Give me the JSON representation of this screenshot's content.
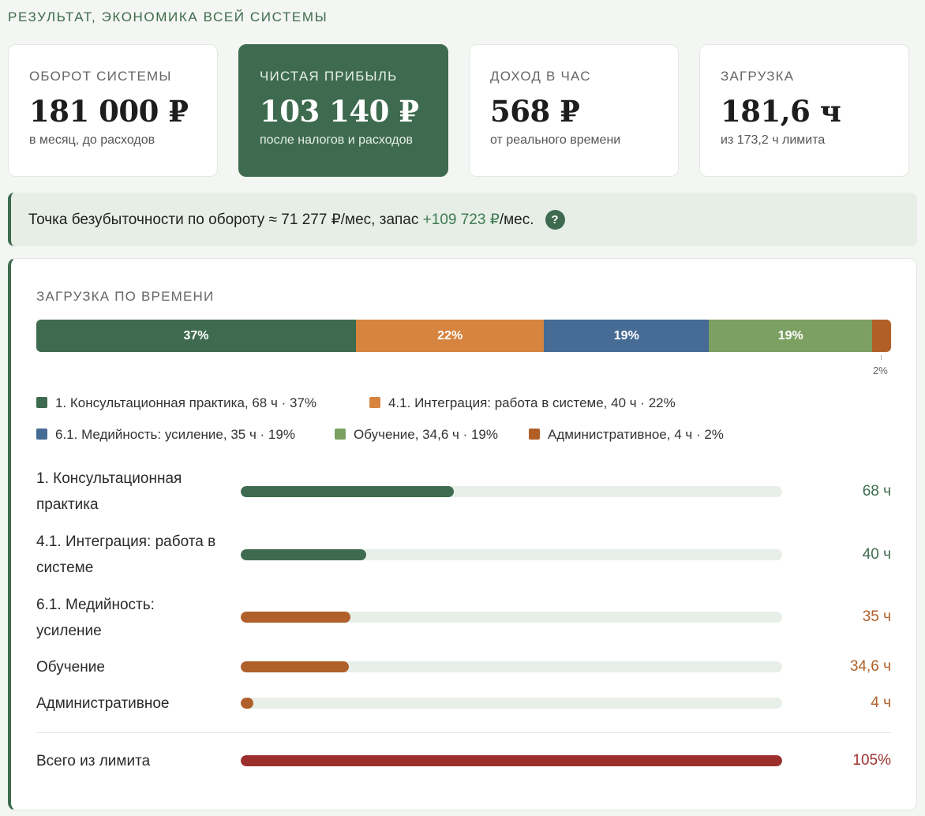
{
  "section_title": "РЕЗУЛЬТАТ, ЭКОНОМИКА ВСЕЙ СИСТЕМЫ",
  "cards": [
    {
      "label": "ОБОРОТ СИСТЕМЫ",
      "value": "181 000 ₽",
      "sub": "в месяц, до расходов"
    },
    {
      "label": "ЧИСТАЯ ПРИБЫЛЬ",
      "value": "103 140 ₽",
      "sub": "после налогов и расходов"
    },
    {
      "label": "ДОХОД В ЧАС",
      "value": "568 ₽",
      "sub": "от реального времени"
    },
    {
      "label": "ЗАГРУЗКА",
      "value": "181,6 ч",
      "sub": "из 173,2 ч лимита"
    }
  ],
  "breakeven": {
    "prefix": "Точка безубыточности по обороту ≈ ",
    "amount": "71 277 ₽",
    "middle": "/мес, запас ",
    "reserve": "+109 723 ₽",
    "suffix": "/мес.",
    "help": "?"
  },
  "panel": {
    "title": "ЗАГРУЗКА ПО ВРЕМЕНИ",
    "stack": [
      {
        "label": "37%",
        "share": 37.4,
        "color": "#3e6b4f"
      },
      {
        "label": "22%",
        "share": 22.0,
        "color": "#d6843f"
      },
      {
        "label": "19%",
        "share": 19.3,
        "color": "#466b95"
      },
      {
        "label": "19%",
        "share": 19.1,
        "color": "#7ba062"
      },
      {
        "label": "",
        "share": 2.2,
        "color": "#b15f26"
      }
    ],
    "small_segment_label": "2%",
    "legend": [
      {
        "text": "1. Консультационная практика, 68 ч · 37%",
        "color": "#3e6b4f"
      },
      {
        "text": "4.1. Интеграция: работа в системе, 40 ч · 22%",
        "color": "#d6843f"
      },
      {
        "text": "6.1. Медийность: усиление, 35 ч · 19%",
        "color": "#466b95"
      },
      {
        "text": "Обучение, 34,6 ч · 19%",
        "color": "#7ba062"
      },
      {
        "text": "Административное, 4 ч · 2%",
        "color": "#b15f26"
      }
    ],
    "rows": [
      {
        "label": "1. Консультационная практика",
        "value": "68 ч",
        "fraction": 0.394,
        "color": "#3e6b4f"
      },
      {
        "label": "4.1. Интеграция: работа в системе",
        "value": "40 ч",
        "fraction": 0.232,
        "color": "#3e6b4f"
      },
      {
        "label": "6.1. Медийность: усиление",
        "value": "35 ч",
        "fraction": 0.203,
        "color": "#b0602a"
      },
      {
        "label": "Обучение",
        "value": "34,6 ч",
        "fraction": 0.2,
        "color": "#b0602a"
      },
      {
        "label": "Административное",
        "value": "4 ч",
        "fraction": 0.023,
        "color": "#b0602a"
      }
    ],
    "total": {
      "label": "Всего из лимита",
      "value": "105%",
      "fraction": 1.0,
      "color": "#9c2f2c"
    }
  }
}
